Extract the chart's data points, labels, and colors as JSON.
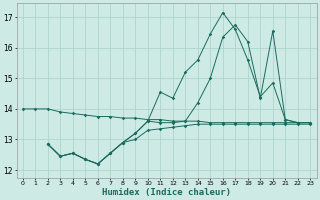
{
  "xlabel": "Humidex (Indice chaleur)",
  "bg_color": "#ceeae5",
  "grid_color": "#aed4ce",
  "line_color": "#1a6b5e",
  "xlim": [
    -0.5,
    23.5
  ],
  "ylim": [
    11.75,
    17.45
  ],
  "yticks": [
    12,
    13,
    14,
    15,
    16,
    17
  ],
  "xticks": [
    0,
    1,
    2,
    3,
    4,
    5,
    6,
    7,
    8,
    9,
    10,
    11,
    12,
    13,
    14,
    15,
    16,
    17,
    18,
    19,
    20,
    21,
    22,
    23
  ],
  "line1_x": [
    0,
    1,
    2,
    3,
    4,
    5,
    6,
    7,
    8,
    9,
    10,
    11,
    12,
    13,
    14,
    15,
    16,
    17,
    18,
    19,
    20,
    21,
    22,
    23
  ],
  "line1_y": [
    14.0,
    14.0,
    14.0,
    13.9,
    13.85,
    13.8,
    13.75,
    13.75,
    13.7,
    13.7,
    13.65,
    13.65,
    13.6,
    13.6,
    13.6,
    13.55,
    13.55,
    13.55,
    13.55,
    13.55,
    13.55,
    13.55,
    13.55,
    13.55
  ],
  "line2_x": [
    2,
    3,
    4,
    5,
    6,
    7,
    8,
    9,
    10,
    11,
    12,
    13,
    14,
    15,
    16,
    17,
    18,
    19,
    20,
    21,
    22,
    23
  ],
  "line2_y": [
    12.85,
    12.45,
    12.55,
    12.35,
    12.2,
    12.55,
    12.9,
    13.0,
    13.3,
    13.35,
    13.4,
    13.45,
    13.5,
    13.5,
    13.5,
    13.5,
    13.5,
    13.5,
    13.5,
    13.5,
    13.5,
    13.5
  ],
  "line3_x": [
    2,
    3,
    4,
    5,
    6,
    7,
    8,
    9,
    10,
    11,
    12,
    13,
    14,
    15,
    16,
    17,
    18,
    19,
    20,
    21,
    22,
    23
  ],
  "line3_y": [
    12.85,
    12.45,
    12.55,
    12.35,
    12.2,
    12.55,
    12.9,
    13.2,
    13.6,
    14.55,
    14.35,
    15.2,
    15.6,
    16.45,
    17.15,
    16.6,
    15.6,
    14.4,
    14.85,
    13.65,
    13.55,
    13.55
  ],
  "line4_x": [
    2,
    3,
    4,
    5,
    6,
    7,
    8,
    9,
    10,
    11,
    12,
    13,
    14,
    15,
    16,
    17,
    18,
    19,
    20,
    21,
    22,
    23
  ],
  "line4_y": [
    12.85,
    12.45,
    12.55,
    12.35,
    12.2,
    12.55,
    12.9,
    13.2,
    13.6,
    13.55,
    13.55,
    13.6,
    14.2,
    15.0,
    16.35,
    16.75,
    16.2,
    14.35,
    16.55,
    13.65,
    13.55,
    13.55
  ]
}
